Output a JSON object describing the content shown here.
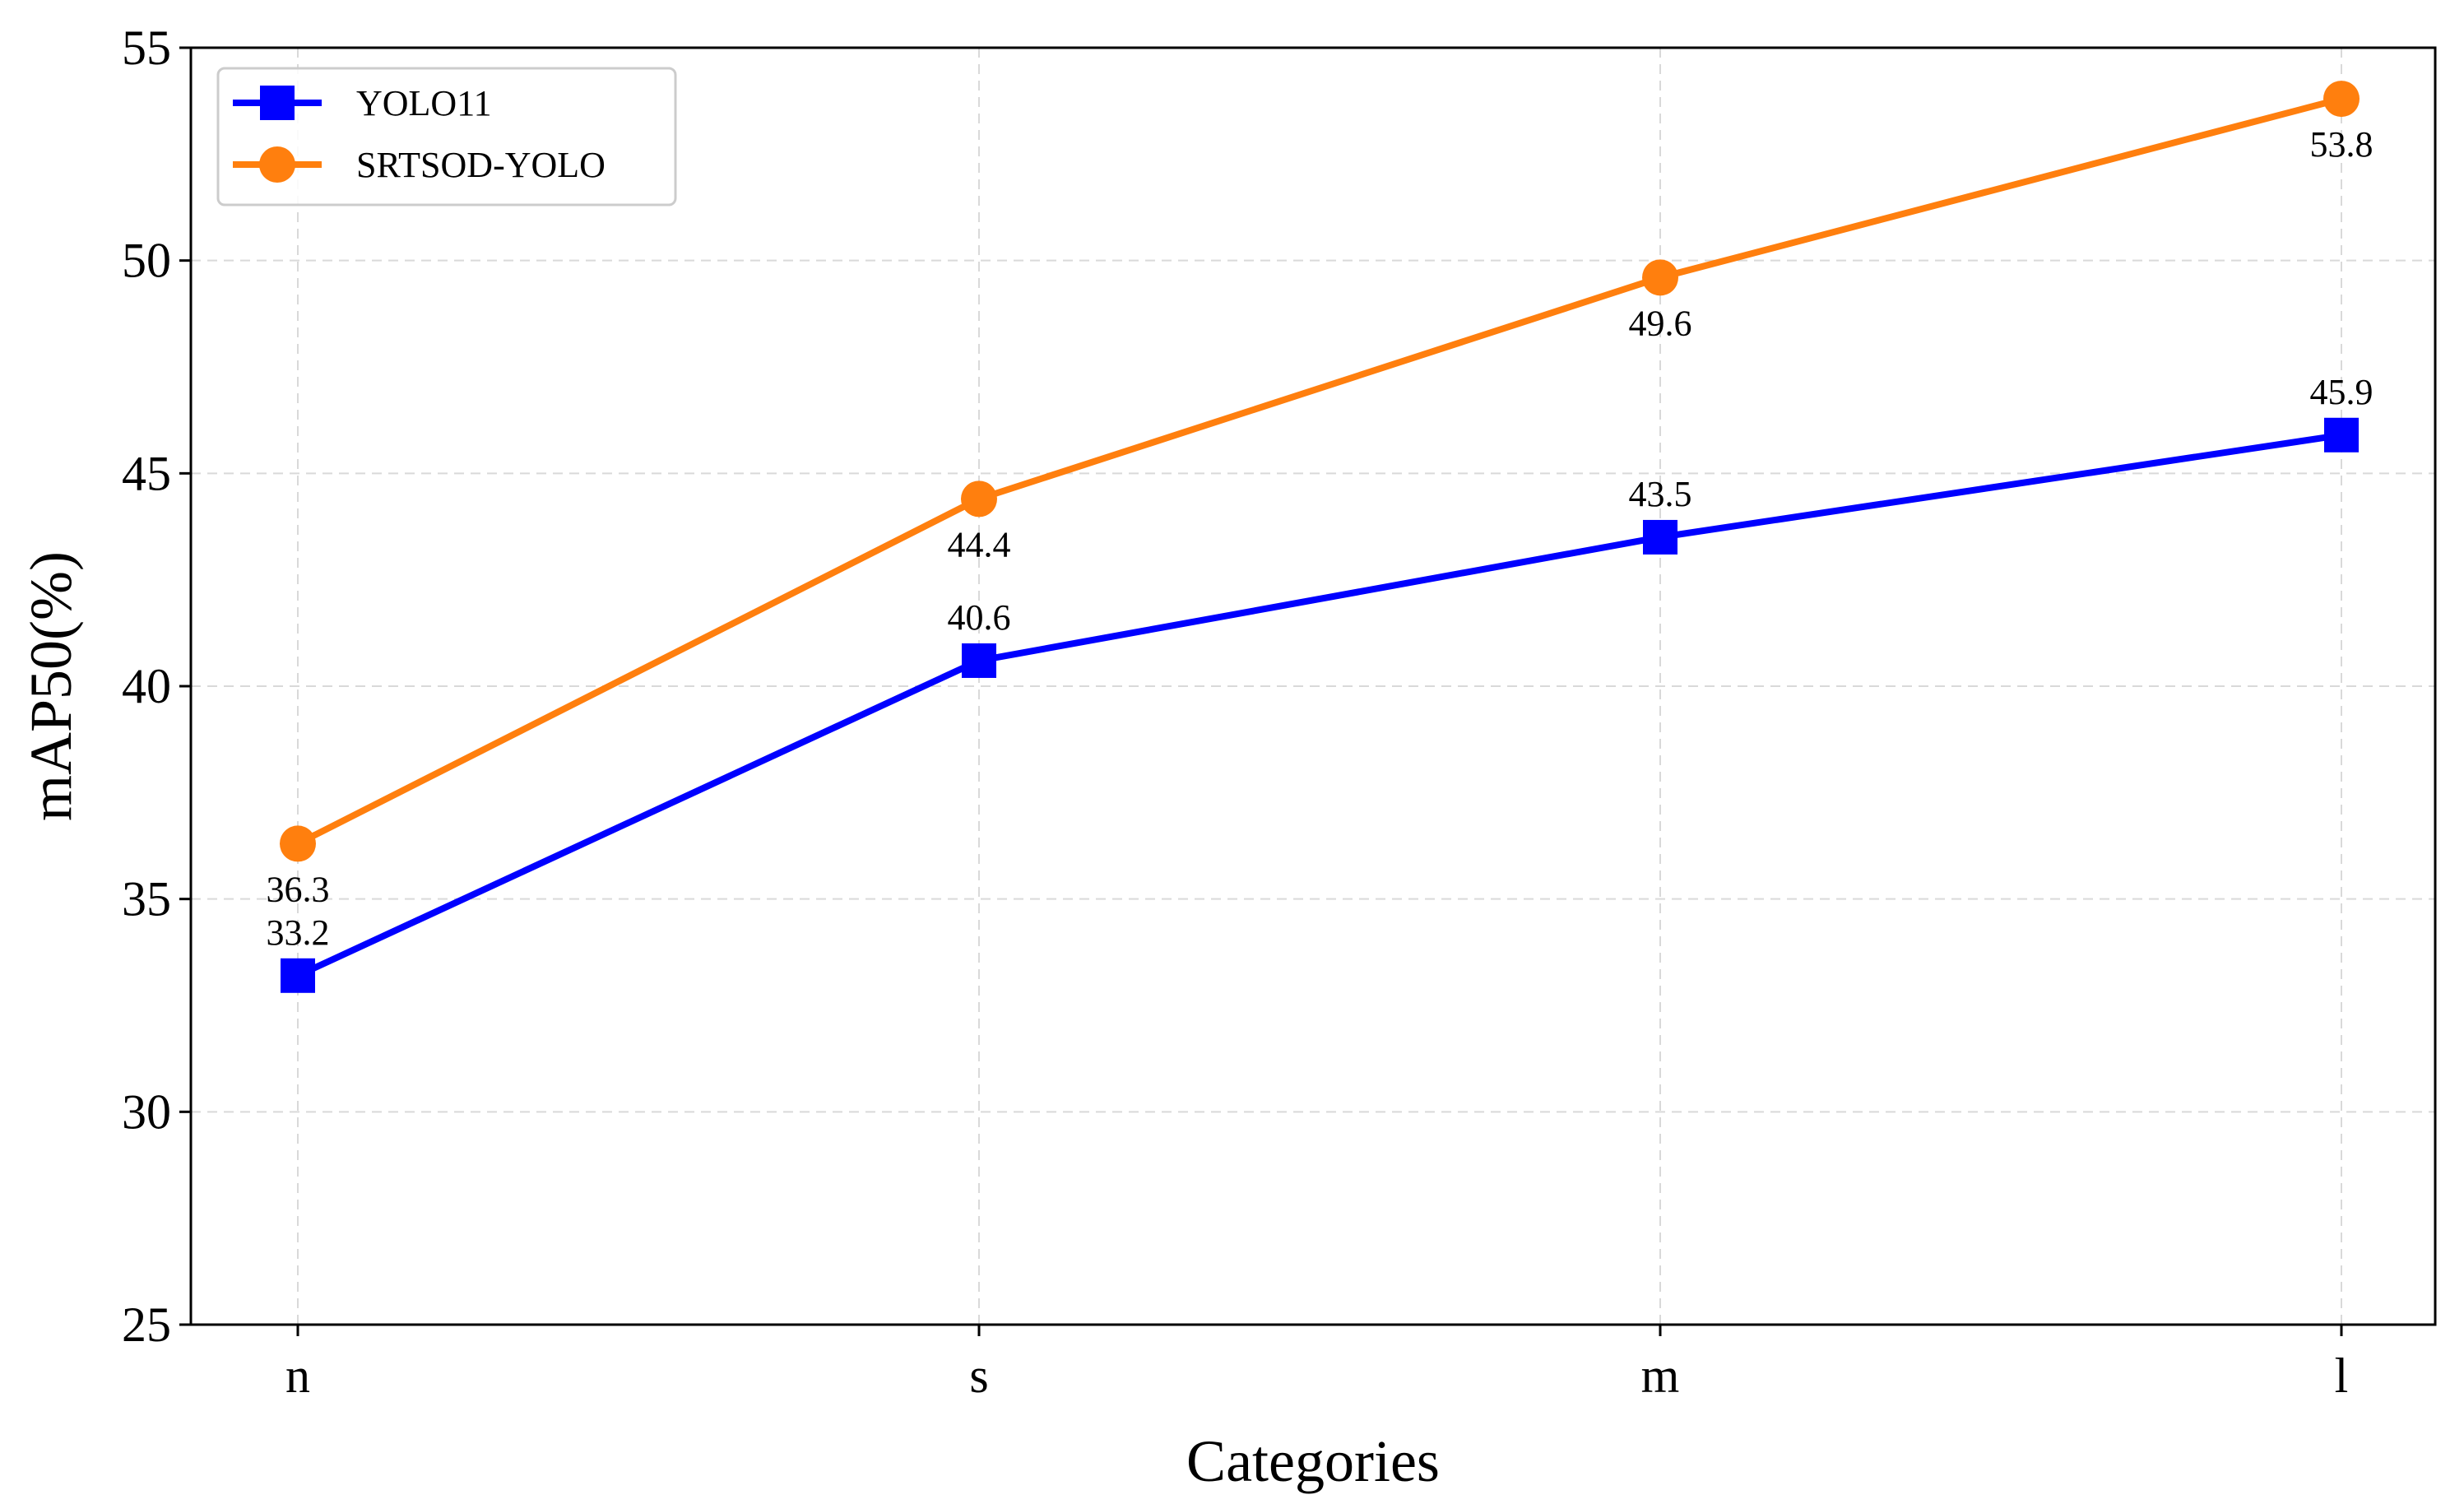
{
  "chart_data": {
    "type": "line",
    "categories": [
      "n",
      "s",
      "m",
      "l"
    ],
    "series": [
      {
        "name": "YOLO11",
        "values": [
          33.2,
          40.6,
          43.5,
          45.9
        ],
        "color": "#0000ff",
        "marker": "square",
        "label_position": "above"
      },
      {
        "name": "SRTSOD-YOLO",
        "values": [
          36.3,
          44.4,
          49.6,
          53.8
        ],
        "color": "#ff7f0e",
        "marker": "circle",
        "label_position": "below"
      }
    ],
    "title": "",
    "xlabel": "Categories",
    "ylabel": "mAP50(%)",
    "ylim": [
      25,
      55
    ],
    "yticks": [
      "25",
      "30",
      "35",
      "40",
      "45",
      "50",
      "55"
    ],
    "grid": true,
    "legend": "top-left"
  }
}
